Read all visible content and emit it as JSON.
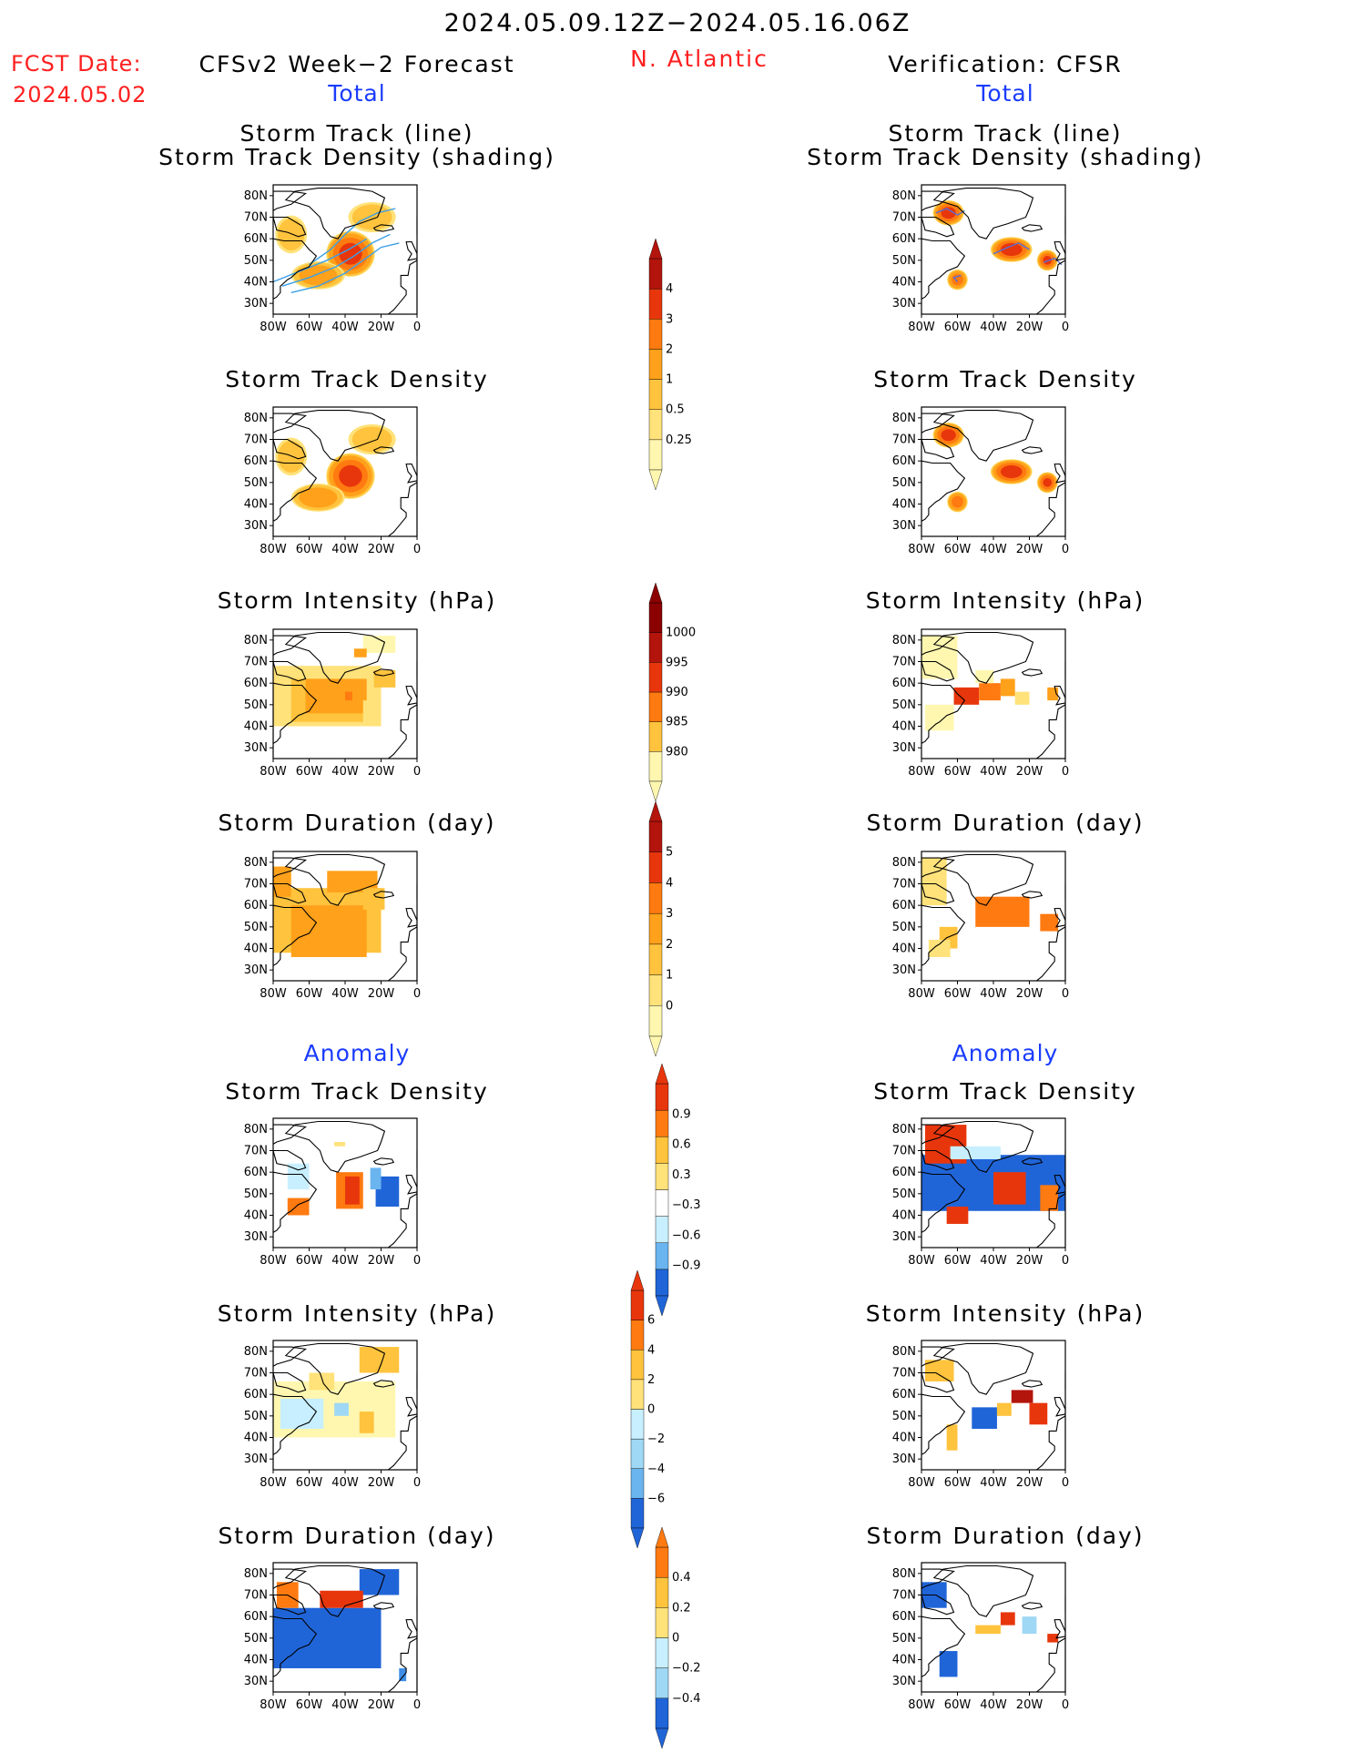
{
  "header": {
    "period": "2024.05.09.12Z−2024.05.16.06Z",
    "fcst_label": "FCST Date:",
    "fcst_date": "2024.05.02",
    "model": "CFSv2 Week−2 Forecast",
    "region": "N. Atlantic",
    "verification": "Verification: CFSR",
    "total_left": "Total",
    "total_right": "Total",
    "anomaly_left": "Anomaly",
    "anomaly_right": "Anomaly"
  },
  "panel_titles": {
    "track_line": "Storm Track (line)",
    "track_shading": "Storm Track Density (shading)",
    "density": "Storm Track Density",
    "intensity": "Storm Intensity (hPa)",
    "duration": "Storm Duration (day)"
  },
  "axes": {
    "lat_ticks": [
      "80N",
      "70N",
      "60N",
      "50N",
      "40N",
      "30N"
    ],
    "lon_ticks": [
      "80W",
      "60W",
      "40W",
      "20W",
      "0"
    ]
  },
  "colors": {
    "warm": [
      "#fff7b0",
      "#ffe27a",
      "#ffc33d",
      "#ffa11a",
      "#ff7a10",
      "#e8360c",
      "#b3140c",
      "#8b0000"
    ],
    "cool": [
      "#c8efff",
      "#9fd8f5",
      "#6ab4ef",
      "#3f8fe6",
      "#2065d8"
    ],
    "track_line_forecast": "#3aa0e8",
    "track_line_verif": "#5a6fd0"
  },
  "chart_data": [
    {
      "type": "heatmap",
      "id": "fc-track",
      "panel": "CFSv2 Total Storm Track (line) / Storm Track Density (shading)",
      "colorbar": "density",
      "blobs": [
        {
          "lon": -37,
          "lat": 53,
          "value": 3.2,
          "rx": 14,
          "ry": 11
        },
        {
          "lon": -55,
          "lat": 43,
          "value": 1.2,
          "rx": 16,
          "ry": 7
        },
        {
          "lon": -25,
          "lat": 70,
          "value": 0.5,
          "rx": 15,
          "ry": 8
        },
        {
          "lon": -70,
          "lat": 62,
          "value": 0.5,
          "rx": 10,
          "ry": 10
        }
      ],
      "tracks": [
        [
          [
            -75,
            38
          ],
          [
            -60,
            42
          ],
          [
            -45,
            47
          ],
          [
            -35,
            52
          ],
          [
            -25,
            58
          ],
          [
            -15,
            62
          ]
        ],
        [
          [
            -80,
            40
          ],
          [
            -65,
            45
          ],
          [
            -50,
            50
          ],
          [
            -38,
            55
          ],
          [
            -28,
            60
          ]
        ],
        [
          [
            -70,
            35
          ],
          [
            -55,
            38
          ],
          [
            -40,
            44
          ],
          [
            -30,
            50
          ],
          [
            -20,
            56
          ],
          [
            -10,
            58
          ]
        ],
        [
          [
            -60,
            48
          ],
          [
            -48,
            55
          ],
          [
            -40,
            62
          ],
          [
            -32,
            68
          ],
          [
            -22,
            72
          ],
          [
            -12,
            74
          ]
        ]
      ]
    },
    {
      "type": "heatmap",
      "id": "vf-track",
      "panel": "CFSR Total Storm Track (line) / Storm Track Density (shading)",
      "colorbar": "density",
      "blobs": [
        {
          "lon": -65,
          "lat": 72,
          "value": 3.2,
          "rx": 9,
          "ry": 6
        },
        {
          "lon": -60,
          "lat": 41,
          "value": 2.2,
          "rx": 6,
          "ry": 5
        },
        {
          "lon": -30,
          "lat": 55,
          "value": 3.4,
          "rx": 12,
          "ry": 6
        },
        {
          "lon": -10,
          "lat": 50,
          "value": 3.0,
          "rx": 6,
          "ry": 5
        }
      ],
      "tracks": [
        [
          [
            -72,
            72
          ],
          [
            -66,
            74
          ],
          [
            -60,
            71
          ],
          [
            -56,
            73
          ]
        ],
        [
          [
            -60,
            40
          ],
          [
            -62,
            42
          ],
          [
            -58,
            43
          ]
        ],
        [
          [
            -40,
            53
          ],
          [
            -32,
            56
          ],
          [
            -26,
            58
          ],
          [
            -20,
            55
          ]
        ],
        [
          [
            -12,
            49
          ],
          [
            -6,
            51
          ],
          [
            -2,
            48
          ]
        ]
      ]
    },
    {
      "type": "heatmap",
      "id": "fc-density",
      "panel": "CFSv2 Total Storm Track Density",
      "colorbar": "density",
      "blobs": [
        {
          "lon": -37,
          "lat": 53,
          "value": 3.2,
          "rx": 14,
          "ry": 11
        },
        {
          "lon": -55,
          "lat": 43,
          "value": 1.2,
          "rx": 16,
          "ry": 7
        },
        {
          "lon": -25,
          "lat": 70,
          "value": 0.5,
          "rx": 15,
          "ry": 8
        },
        {
          "lon": -70,
          "lat": 62,
          "value": 0.5,
          "rx": 10,
          "ry": 10
        }
      ]
    },
    {
      "type": "heatmap",
      "id": "vf-density",
      "panel": "CFSR Total Storm Track Density",
      "colorbar": "density",
      "blobs": [
        {
          "lon": -65,
          "lat": 72,
          "value": 3.2,
          "rx": 9,
          "ry": 6
        },
        {
          "lon": -60,
          "lat": 41,
          "value": 2.2,
          "rx": 6,
          "ry": 5
        },
        {
          "lon": -30,
          "lat": 55,
          "value": 3.4,
          "rx": 12,
          "ry": 6
        },
        {
          "lon": -10,
          "lat": 50,
          "value": 3.0,
          "rx": 6,
          "ry": 5
        }
      ]
    },
    {
      "type": "heatmap",
      "id": "fc-intensity",
      "panel": "CFSv2 Total Storm Intensity (hPa)",
      "colorbar": "intensity",
      "cells": [
        [
          -80,
          40,
          -20,
          68,
          "#ffe27a"
        ],
        [
          -70,
          42,
          -30,
          62,
          "#ffc33d"
        ],
        [
          -62,
          46,
          -28,
          62,
          "#ffa11a"
        ],
        [
          -40,
          52,
          -36,
          56,
          "#ff7a10"
        ],
        [
          -30,
          74,
          -12,
          82,
          "#fff7b0"
        ],
        [
          -35,
          72,
          -28,
          76,
          "#ffa11a"
        ],
        [
          -24,
          58,
          -12,
          66,
          "#ffc33d"
        ],
        [
          -30,
          44,
          -20,
          52,
          "#ffe27a"
        ]
      ]
    },
    {
      "type": "heatmap",
      "id": "vf-intensity",
      "panel": "CFSR Total Storm Intensity (hPa)",
      "colorbar": "intensity",
      "cells": [
        [
          -80,
          62,
          -60,
          82,
          "#fff7b0"
        ],
        [
          -78,
          38,
          -62,
          50,
          "#fff7b0"
        ],
        [
          -62,
          50,
          -48,
          58,
          "#e8360c"
        ],
        [
          -48,
          52,
          -36,
          60,
          "#ff7a10"
        ],
        [
          -36,
          54,
          -28,
          62,
          "#ffa11a"
        ],
        [
          -28,
          50,
          -20,
          56,
          "#ffe27a"
        ],
        [
          -10,
          52,
          -4,
          58,
          "#ffa11a"
        ],
        [
          -50,
          60,
          -40,
          66,
          "#fff7b0"
        ]
      ]
    },
    {
      "type": "heatmap",
      "id": "fc-duration",
      "panel": "CFSv2 Total Storm Duration (day)",
      "colorbar": "duration",
      "cells": [
        [
          -80,
          38,
          -20,
          68,
          "#ffc33d"
        ],
        [
          -70,
          36,
          -28,
          60,
          "#ffa11a"
        ],
        [
          -50,
          66,
          -22,
          76,
          "#ffa11a"
        ],
        [
          -80,
          64,
          -70,
          78,
          "#ffa11a"
        ],
        [
          -30,
          58,
          -18,
          68,
          "#ffc33d"
        ]
      ]
    },
    {
      "type": "heatmap",
      "id": "vf-duration",
      "panel": "CFSR Total Storm Duration (day)",
      "colorbar": "duration",
      "cells": [
        [
          -80,
          60,
          -66,
          82,
          "#ffe27a"
        ],
        [
          -70,
          40,
          -60,
          50,
          "#ffc33d"
        ],
        [
          -50,
          50,
          -20,
          64,
          "#ff7a10"
        ],
        [
          -14,
          48,
          -4,
          56,
          "#ff7a10"
        ],
        [
          -76,
          36,
          -64,
          44,
          "#ffe27a"
        ]
      ]
    },
    {
      "type": "heatmap",
      "id": "fc-anom-density",
      "panel": "CFSv2 Anomaly Storm Track Density",
      "colorbar": "anom_density",
      "cells": [
        [
          -45,
          43,
          -30,
          60,
          "#ff7a10"
        ],
        [
          -40,
          45,
          -32,
          58,
          "#e8360c"
        ],
        [
          -23,
          44,
          -10,
          58,
          "#2065d8"
        ],
        [
          -26,
          52,
          -20,
          62,
          "#6ab4ef"
        ],
        [
          -72,
          52,
          -60,
          64,
          "#c8efff"
        ],
        [
          -72,
          40,
          -60,
          48,
          "#ff7a10"
        ],
        [
          -46,
          72,
          -40,
          74,
          "#ffe27a"
        ]
      ]
    },
    {
      "type": "heatmap",
      "id": "vf-anom-density",
      "panel": "CFSR Anomaly Storm Track Density",
      "colorbar": "anom_density",
      "cells": [
        [
          -80,
          42,
          0,
          68,
          "#2065d8"
        ],
        [
          -78,
          64,
          -55,
          82,
          "#e8360c"
        ],
        [
          -40,
          45,
          -22,
          60,
          "#e8360c"
        ],
        [
          -66,
          36,
          -54,
          44,
          "#e8360c"
        ],
        [
          -14,
          42,
          -4,
          54,
          "#ff7a10"
        ],
        [
          -64,
          66,
          -36,
          72,
          "#c8efff"
        ]
      ]
    },
    {
      "type": "heatmap",
      "id": "fc-anom-intensity",
      "panel": "CFSv2 Anomaly Storm Intensity (hPa)",
      "colorbar": "anom_intensity",
      "cells": [
        [
          -80,
          40,
          -12,
          66,
          "#fff7b0"
        ],
        [
          -76,
          44,
          -52,
          58,
          "#c8efff"
        ],
        [
          -46,
          50,
          -38,
          56,
          "#9fd8f5"
        ],
        [
          -32,
          70,
          -10,
          82,
          "#ffc33d"
        ],
        [
          -32,
          42,
          -24,
          52,
          "#ffc33d"
        ],
        [
          -60,
          62,
          -46,
          70,
          "#ffe27a"
        ]
      ]
    },
    {
      "type": "heatmap",
      "id": "vf-anom-intensity",
      "panel": "CFSR Anomaly Storm Intensity (hPa)",
      "colorbar": "anom_intensity",
      "cells": [
        [
          -78,
          66,
          -62,
          76,
          "#ffc33d"
        ],
        [
          -52,
          44,
          -38,
          54,
          "#2065d8"
        ],
        [
          -30,
          56,
          -18,
          62,
          "#b3140c"
        ],
        [
          -20,
          46,
          -10,
          56,
          "#e8360c"
        ],
        [
          -66,
          34,
          -60,
          46,
          "#ffc33d"
        ],
        [
          -38,
          50,
          -30,
          56,
          "#ffc33d"
        ]
      ]
    },
    {
      "type": "heatmap",
      "id": "fc-anom-duration",
      "panel": "CFSv2 Anomaly Storm Duration (day)",
      "colorbar": "anom_duration",
      "cells": [
        [
          -80,
          36,
          -20,
          64,
          "#2065d8"
        ],
        [
          -32,
          70,
          -10,
          82,
          "#2065d8"
        ],
        [
          -54,
          64,
          -30,
          72,
          "#e8360c"
        ],
        [
          -78,
          64,
          -66,
          76,
          "#ff7a10"
        ],
        [
          -10,
          30,
          -6,
          36,
          "#3f8fe6"
        ]
      ]
    },
    {
      "type": "heatmap",
      "id": "vf-anom-duration",
      "panel": "CFSR Anomaly Storm Duration (day)",
      "colorbar": "anom_duration",
      "cells": [
        [
          -80,
          64,
          -66,
          76,
          "#2065d8"
        ],
        [
          -70,
          32,
          -60,
          44,
          "#2065d8"
        ],
        [
          -50,
          52,
          -36,
          56,
          "#ffc33d"
        ],
        [
          -36,
          56,
          -28,
          62,
          "#e8360c"
        ],
        [
          -24,
          52,
          -16,
          60,
          "#9fd8f5"
        ],
        [
          -10,
          48,
          -4,
          52,
          "#e8360c"
        ]
      ]
    }
  ],
  "colorbars": [
    {
      "id": "density",
      "labels": [
        "4",
        "3",
        "2",
        "1",
        "0.5",
        "0.25"
      ],
      "colors": [
        "#fff7b0",
        "#ffe27a",
        "#ffc33d",
        "#ffa11a",
        "#ff7a10",
        "#e8360c",
        "#b3140c"
      ]
    },
    {
      "id": "intensity",
      "labels": [
        "1000",
        "995",
        "990",
        "985",
        "980"
      ],
      "colors": [
        "#fff7b0",
        "#ffc33d",
        "#ff7a10",
        "#e8360c",
        "#b3140c",
        "#8b0000"
      ]
    },
    {
      "id": "duration",
      "labels": [
        "5",
        "4",
        "3",
        "2",
        "1",
        "0"
      ],
      "colors": [
        "#fff7b0",
        "#ffe27a",
        "#ffc33d",
        "#ffa11a",
        "#ff7a10",
        "#e8360c",
        "#b3140c"
      ]
    },
    {
      "id": "anom_density",
      "labels": [
        "0.9",
        "0.6",
        "0.3",
        "−0.3",
        "−0.6",
        "−0.9"
      ],
      "colors": [
        "#2065d8",
        "#6ab4ef",
        "#c8efff",
        "#ffffff",
        "#ffe27a",
        "#ffc33d",
        "#ff7a10",
        "#e8360c"
      ]
    },
    {
      "id": "anom_intensity",
      "labels": [
        "6",
        "4",
        "2",
        "0",
        "−2",
        "−4",
        "−6"
      ],
      "colors": [
        "#2065d8",
        "#6ab4ef",
        "#9fd8f5",
        "#c8efff",
        "#ffe27a",
        "#ffc33d",
        "#ff7a10",
        "#e8360c"
      ]
    },
    {
      "id": "anom_duration",
      "labels": [
        "0.4",
        "0.2",
        "0",
        "−0.2",
        "−0.4"
      ],
      "colors": [
        "#2065d8",
        "#9fd8f5",
        "#c8efff",
        "#ffe27a",
        "#ffc33d",
        "#ff7a10"
      ]
    }
  ]
}
